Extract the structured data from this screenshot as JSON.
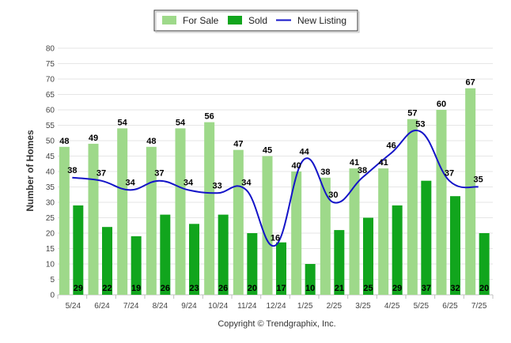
{
  "chart_data": {
    "type": "bar",
    "categories": [
      "5/24",
      "6/24",
      "7/24",
      "8/24",
      "9/24",
      "10/24",
      "11/24",
      "12/24",
      "1/25",
      "2/25",
      "3/25",
      "4/25",
      "5/25",
      "6/25",
      "7/25"
    ],
    "series": [
      {
        "name": "For Sale",
        "kind": "bar",
        "color": "#9ed98a",
        "values": [
          48,
          49,
          54,
          48,
          54,
          56,
          47,
          45,
          40,
          38,
          41,
          41,
          57,
          60,
          67
        ]
      },
      {
        "name": "Sold",
        "kind": "bar",
        "color": "#11a51d",
        "values": [
          29,
          22,
          19,
          26,
          23,
          26,
          20,
          17,
          10,
          21,
          25,
          29,
          37,
          32,
          20
        ]
      },
      {
        "name": "New Listing",
        "kind": "line",
        "color": "#1414c8",
        "values": [
          38,
          37,
          34,
          37,
          34,
          33,
          34,
          16,
          44,
          30,
          38,
          46,
          53,
          37,
          35
        ]
      }
    ],
    "ylabel": "Number of Homes",
    "xlabel": "",
    "ylim": [
      0,
      80
    ],
    "yticks": [
      0,
      5,
      10,
      15,
      20,
      25,
      30,
      35,
      40,
      45,
      50,
      55,
      60,
      65,
      70,
      75,
      80
    ],
    "grid": true,
    "legend_position": "top-center",
    "footer": "Copyright © Trendgraphix, Inc."
  }
}
